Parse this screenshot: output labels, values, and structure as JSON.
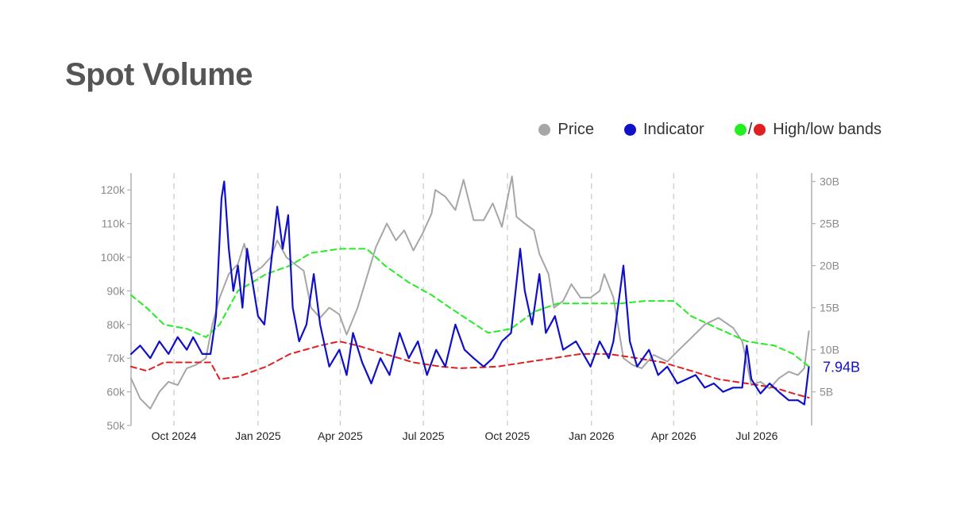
{
  "title": "Spot Volume",
  "legend": {
    "price_label": "Price",
    "indicator_label": "Indicator",
    "bands_label": "High/low bands",
    "slash": "/"
  },
  "colors": {
    "price": "#a6a6a6",
    "indicator": "#1010c8",
    "high_band": "#22ee22",
    "low_band": "#e02020",
    "axis": "#b0b0b0",
    "grid": "#cccccc"
  },
  "chart_data": {
    "type": "line",
    "x_range": [
      "2024-08-15",
      "2026-08-30"
    ],
    "x_ticks": [
      {
        "date": "2024-10-01",
        "label": "Oct 2024"
      },
      {
        "date": "2025-01-01",
        "label": "Jan 2025"
      },
      {
        "date": "2025-04-01",
        "label": "Apr 2025"
      },
      {
        "date": "2025-07-01",
        "label": "Jul 2025"
      },
      {
        "date": "2025-10-01",
        "label": "Oct 2025"
      },
      {
        "date": "2026-01-01",
        "label": "Jan 2026"
      },
      {
        "date": "2026-04-01",
        "label": "Apr 2026"
      },
      {
        "date": "2026-07-01",
        "label": "Jul 2026"
      }
    ],
    "vertical_grid": "dashed at x ticks",
    "y_left": {
      "range": [
        50000,
        125000
      ],
      "ticks": [
        50000,
        60000,
        70000,
        80000,
        90000,
        100000,
        110000,
        120000
      ],
      "tick_labels": [
        "50k",
        "60k",
        "70k",
        "80k",
        "90k",
        "100k",
        "110k",
        "120k"
      ]
    },
    "y_right": {
      "range": [
        1,
        31
      ],
      "ticks": [
        5,
        10,
        15,
        20,
        25,
        30
      ],
      "tick_labels": [
        "5B",
        "10B",
        "15B",
        "20B",
        "25B",
        "30B"
      ]
    },
    "last_value_label": "7.94B",
    "series": [
      {
        "name": "Price",
        "axis": "left",
        "style": "solid",
        "points": [
          [
            "2024-08-15",
            64000
          ],
          [
            "2024-08-25",
            58000
          ],
          [
            "2024-09-05",
            55000
          ],
          [
            "2024-09-15",
            60000
          ],
          [
            "2024-09-25",
            63000
          ],
          [
            "2024-10-05",
            62000
          ],
          [
            "2024-10-15",
            67000
          ],
          [
            "2024-10-25",
            68000
          ],
          [
            "2024-11-05",
            70000
          ],
          [
            "2024-11-12",
            80000
          ],
          [
            "2024-11-20",
            88000
          ],
          [
            "2024-11-30",
            95000
          ],
          [
            "2024-12-10",
            98000
          ],
          [
            "2024-12-17",
            104000
          ],
          [
            "2024-12-25",
            95000
          ],
          [
            "2025-01-05",
            97000
          ],
          [
            "2025-01-15",
            100000
          ],
          [
            "2025-01-22",
            105000
          ],
          [
            "2025-02-01",
            100000
          ],
          [
            "2025-02-10",
            98000
          ],
          [
            "2025-02-20",
            96000
          ],
          [
            "2025-02-28",
            85000
          ],
          [
            "2025-03-10",
            82000
          ],
          [
            "2025-03-20",
            85000
          ],
          [
            "2025-03-31",
            83000
          ],
          [
            "2025-04-08",
            77000
          ],
          [
            "2025-04-20",
            85000
          ],
          [
            "2025-04-30",
            94000
          ],
          [
            "2025-05-10",
            103000
          ],
          [
            "2025-05-22",
            110000
          ],
          [
            "2025-06-01",
            105000
          ],
          [
            "2025-06-10",
            108000
          ],
          [
            "2025-06-20",
            102000
          ],
          [
            "2025-06-30",
            107000
          ],
          [
            "2025-07-10",
            113000
          ],
          [
            "2025-07-14",
            120000
          ],
          [
            "2025-07-25",
            118000
          ],
          [
            "2025-08-05",
            114000
          ],
          [
            "2025-08-14",
            123000
          ],
          [
            "2025-08-25",
            111000
          ],
          [
            "2025-09-05",
            111000
          ],
          [
            "2025-09-15",
            116000
          ],
          [
            "2025-09-25",
            109000
          ],
          [
            "2025-10-06",
            124000
          ],
          [
            "2025-10-11",
            112000
          ],
          [
            "2025-10-20",
            110000
          ],
          [
            "2025-10-30",
            108000
          ],
          [
            "2025-11-05",
            101000
          ],
          [
            "2025-11-15",
            95000
          ],
          [
            "2025-11-21",
            85000
          ],
          [
            "2025-12-01",
            87000
          ],
          [
            "2025-12-10",
            92000
          ],
          [
            "2025-12-20",
            88000
          ],
          [
            "2025-12-31",
            88000
          ],
          [
            "2026-01-10",
            90000
          ],
          [
            "2026-01-15",
            95000
          ],
          [
            "2026-01-25",
            88000
          ],
          [
            "2026-02-05",
            70000
          ],
          [
            "2026-02-15",
            68000
          ],
          [
            "2026-02-25",
            67000
          ],
          [
            "2026-03-10",
            71000
          ],
          [
            "2026-03-25",
            69000
          ],
          [
            "2026-04-05",
            72000
          ],
          [
            "2026-04-20",
            76000
          ],
          [
            "2026-05-05",
            80000
          ],
          [
            "2026-05-20",
            82000
          ],
          [
            "2026-06-05",
            79000
          ],
          [
            "2026-06-15",
            75000
          ],
          [
            "2026-06-25",
            62000
          ],
          [
            "2026-07-05",
            63000
          ],
          [
            "2026-07-15",
            61000
          ],
          [
            "2026-07-25",
            64000
          ],
          [
            "2026-08-05",
            66000
          ],
          [
            "2026-08-15",
            65000
          ],
          [
            "2026-08-22",
            67000
          ],
          [
            "2026-08-27",
            78000
          ]
        ]
      },
      {
        "name": "Indicator",
        "axis": "right",
        "style": "solid",
        "points": [
          [
            "2024-08-15",
            9.5
          ],
          [
            "2024-08-25",
            10.5
          ],
          [
            "2024-09-05",
            9
          ],
          [
            "2024-09-15",
            11
          ],
          [
            "2024-09-25",
            9.5
          ],
          [
            "2024-10-05",
            11.5
          ],
          [
            "2024-10-15",
            10
          ],
          [
            "2024-10-22",
            11.5
          ],
          [
            "2024-11-01",
            9.5
          ],
          [
            "2024-11-10",
            9.5
          ],
          [
            "2024-11-16",
            14
          ],
          [
            "2024-11-22",
            28
          ],
          [
            "2024-11-25",
            30
          ],
          [
            "2024-11-30",
            22
          ],
          [
            "2024-12-05",
            17
          ],
          [
            "2024-12-10",
            20
          ],
          [
            "2024-12-15",
            15
          ],
          [
            "2024-12-20",
            22
          ],
          [
            "2024-12-26",
            18
          ],
          [
            "2025-01-01",
            14
          ],
          [
            "2025-01-08",
            13
          ],
          [
            "2025-01-15",
            20
          ],
          [
            "2025-01-22",
            27
          ],
          [
            "2025-01-28",
            22
          ],
          [
            "2025-02-03",
            26
          ],
          [
            "2025-02-08",
            15
          ],
          [
            "2025-02-15",
            11
          ],
          [
            "2025-02-23",
            13
          ],
          [
            "2025-03-03",
            19
          ],
          [
            "2025-03-10",
            13
          ],
          [
            "2025-03-20",
            8
          ],
          [
            "2025-03-31",
            10
          ],
          [
            "2025-04-08",
            7
          ],
          [
            "2025-04-15",
            12
          ],
          [
            "2025-04-25",
            8.5
          ],
          [
            "2025-05-05",
            6
          ],
          [
            "2025-05-15",
            9
          ],
          [
            "2025-05-25",
            7
          ],
          [
            "2025-06-05",
            12
          ],
          [
            "2025-06-15",
            9
          ],
          [
            "2025-06-25",
            11
          ],
          [
            "2025-07-05",
            7
          ],
          [
            "2025-07-15",
            10
          ],
          [
            "2025-07-25",
            8
          ],
          [
            "2025-08-05",
            13
          ],
          [
            "2025-08-15",
            10
          ],
          [
            "2025-08-25",
            9
          ],
          [
            "2025-09-05",
            8
          ],
          [
            "2025-09-15",
            9
          ],
          [
            "2025-09-25",
            11
          ],
          [
            "2025-10-05",
            12
          ],
          [
            "2025-10-15",
            22
          ],
          [
            "2025-10-20",
            17
          ],
          [
            "2025-10-28",
            13
          ],
          [
            "2025-11-05",
            19
          ],
          [
            "2025-11-12",
            12
          ],
          [
            "2025-11-22",
            14
          ],
          [
            "2025-12-01",
            10
          ],
          [
            "2025-12-15",
            11
          ],
          [
            "2025-12-31",
            8
          ],
          [
            "2026-01-10",
            11
          ],
          [
            "2026-01-20",
            9
          ],
          [
            "2026-01-25",
            11
          ],
          [
            "2026-02-05",
            20
          ],
          [
            "2026-02-12",
            11
          ],
          [
            "2026-02-20",
            8
          ],
          [
            "2026-03-05",
            10
          ],
          [
            "2026-03-15",
            7
          ],
          [
            "2026-03-25",
            8
          ],
          [
            "2026-04-05",
            6
          ],
          [
            "2026-04-15",
            6.5
          ],
          [
            "2026-04-25",
            7
          ],
          [
            "2026-05-05",
            5.5
          ],
          [
            "2026-05-15",
            6
          ],
          [
            "2026-05-25",
            5
          ],
          [
            "2026-06-05",
            5.5
          ],
          [
            "2026-06-15",
            5.5
          ],
          [
            "2026-06-20",
            10.5
          ],
          [
            "2026-06-25",
            6.5
          ],
          [
            "2026-07-05",
            4.8
          ],
          [
            "2026-07-15",
            6
          ],
          [
            "2026-07-25",
            5
          ],
          [
            "2026-08-05",
            4
          ],
          [
            "2026-08-15",
            4
          ],
          [
            "2026-08-22",
            3.5
          ],
          [
            "2026-08-27",
            7.94
          ]
        ]
      },
      {
        "name": "High band",
        "axis": "right",
        "style": "dashed",
        "points": [
          [
            "2024-08-15",
            16.5
          ],
          [
            "2024-09-01",
            15
          ],
          [
            "2024-09-20",
            13
          ],
          [
            "2024-10-15",
            12.5
          ],
          [
            "2024-11-05",
            11.5
          ],
          [
            "2024-11-20",
            13
          ],
          [
            "2024-12-10",
            17
          ],
          [
            "2025-01-10",
            19
          ],
          [
            "2025-02-05",
            20
          ],
          [
            "2025-02-28",
            21.5
          ],
          [
            "2025-04-01",
            22
          ],
          [
            "2025-04-30",
            22
          ],
          [
            "2025-05-20",
            20
          ],
          [
            "2025-06-15",
            18
          ],
          [
            "2025-07-10",
            16.5
          ],
          [
            "2025-07-30",
            15
          ],
          [
            "2025-08-20",
            13.5
          ],
          [
            "2025-09-10",
            12
          ],
          [
            "2025-10-05",
            12.5
          ],
          [
            "2025-10-30",
            14.5
          ],
          [
            "2025-11-25",
            15.5
          ],
          [
            "2026-01-01",
            15.5
          ],
          [
            "2026-02-01",
            15.5
          ],
          [
            "2026-03-01",
            15.8
          ],
          [
            "2026-04-01",
            15.8
          ],
          [
            "2026-04-20",
            14
          ],
          [
            "2026-05-20",
            12.5
          ],
          [
            "2026-06-20",
            11
          ],
          [
            "2026-07-20",
            10.5
          ],
          [
            "2026-08-10",
            9.5
          ],
          [
            "2026-08-27",
            8
          ]
        ]
      },
      {
        "name": "Low band",
        "axis": "right",
        "style": "dashed",
        "points": [
          [
            "2024-08-15",
            8
          ],
          [
            "2024-09-01",
            7.5
          ],
          [
            "2024-09-20",
            8.5
          ],
          [
            "2024-10-15",
            8.5
          ],
          [
            "2024-11-10",
            8.5
          ],
          [
            "2024-11-20",
            6.5
          ],
          [
            "2024-12-10",
            6.8
          ],
          [
            "2025-01-10",
            8
          ],
          [
            "2025-02-05",
            9.5
          ],
          [
            "2025-03-10",
            10.5
          ],
          [
            "2025-03-31",
            11
          ],
          [
            "2025-04-20",
            10.5
          ],
          [
            "2025-05-20",
            9.5
          ],
          [
            "2025-06-20",
            8.5
          ],
          [
            "2025-07-20",
            8
          ],
          [
            "2025-08-10",
            7.8
          ],
          [
            "2025-09-20",
            8
          ],
          [
            "2025-10-20",
            8.5
          ],
          [
            "2025-11-20",
            9
          ],
          [
            "2025-12-20",
            9.5
          ],
          [
            "2026-01-20",
            9.5
          ],
          [
            "2026-02-20",
            9
          ],
          [
            "2026-03-20",
            8.5
          ],
          [
            "2026-04-20",
            7.5
          ],
          [
            "2026-05-20",
            6.5
          ],
          [
            "2026-06-20",
            6
          ],
          [
            "2026-07-20",
            5.5
          ],
          [
            "2026-08-10",
            4.8
          ],
          [
            "2026-08-27",
            4.3
          ]
        ]
      }
    ]
  }
}
